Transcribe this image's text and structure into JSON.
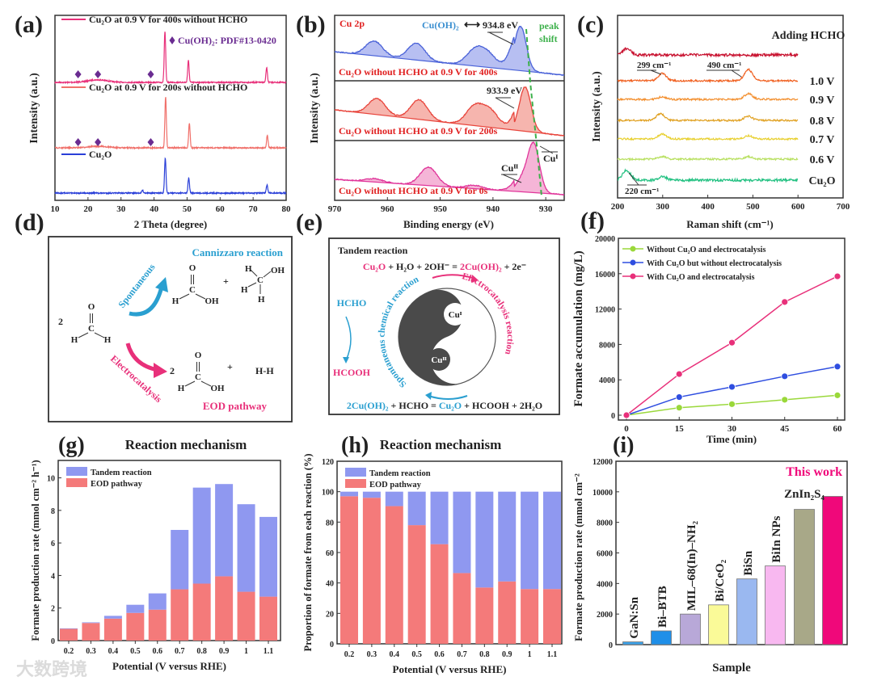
{
  "chart_data": [
    {
      "id": "a",
      "type": "line",
      "label": "(a)",
      "xlabel": "2 Theta (degree)",
      "ylabel": "Intensity (a.u.)",
      "xlim": [
        10,
        80
      ],
      "xticks": [
        10,
        20,
        30,
        40,
        50,
        60,
        70,
        80
      ],
      "series": [
        {
          "name": "Cu₂O at 0.9 V for 400s without HCHO",
          "color": "#e8307a",
          "peaks": [
            {
              "x": 43.3,
              "intensity": 100
            },
            {
              "x": 50.4,
              "intensity": 43
            },
            {
              "x": 74.1,
              "intensity": 29
            },
            {
              "x": 23,
              "intensity": 5,
              "width": 3
            }
          ]
        },
        {
          "name": "Cu₂O at 0.9 V for 200s without HCHO",
          "color": "#f0706a",
          "peaks": [
            {
              "x": 43.5,
              "intensity": 100
            },
            {
              "x": 50.7,
              "intensity": 49
            },
            {
              "x": 74.3,
              "intensity": 25
            },
            {
              "x": 23,
              "intensity": 3,
              "width": 3
            }
          ]
        },
        {
          "name": "Cu₂O",
          "color": "#2a3fd8",
          "peaks": [
            {
              "x": 43.4,
              "intensity": 68
            },
            {
              "x": 50.5,
              "intensity": 30
            },
            {
              "x": 74.2,
              "intensity": 16
            },
            {
              "x": 36.5,
              "intensity": 6
            }
          ]
        }
      ],
      "annotation": {
        "text": "Cu(OH)₂: PDF#13-0420",
        "color": "#6a2c91",
        "marker_positions": [
          17,
          23,
          39
        ]
      }
    },
    {
      "id": "b",
      "type": "line",
      "label": "(b)",
      "xlabel": "Binding energy (eV)",
      "ylabel": "Intensity (a.u.)",
      "xlim": [
        970,
        926.5
      ],
      "xticks": [
        970,
        960,
        950,
        940,
        930
      ],
      "title": "Cu 2p",
      "series": [
        {
          "name": "Cu₂O without HCHO at 0.9 V for 400s",
          "color": "#4a62d8",
          "fill": "#aab4f0",
          "peaks": [
            {
              "x": 962.5,
              "intensity": 33
            },
            {
              "x": 954.5,
              "intensity": 38
            },
            {
              "x": 943.5,
              "intensity": 33
            },
            {
              "x": 941,
              "intensity": 29
            },
            {
              "x": 934.8,
              "intensity": 100
            }
          ]
        },
        {
          "name": "Cu₂O without HCHO at 0.9 V for 200s",
          "color": "#e8453c",
          "fill": "#f5a8a0",
          "peaks": [
            {
              "x": 962,
              "intensity": 36
            },
            {
              "x": 954,
              "intensity": 44
            },
            {
              "x": 943.5,
              "intensity": 42
            },
            {
              "x": 940.5,
              "intensity": 36
            },
            {
              "x": 933.9,
              "intensity": 100
            }
          ]
        },
        {
          "name": "Cu₂O without HCHO  at 0.9 V for 0s",
          "color": "#e0359a",
          "fill": "#f3a8d0",
          "peaks": [
            {
              "x": 962.5,
              "intensity": 7
            },
            {
              "x": 952.2,
              "intensity": 38
            },
            {
              "x": 943.5,
              "intensity": 7
            },
            {
              "x": 934.5,
              "intensity": 25
            },
            {
              "x": 932.3,
              "intensity": 100
            }
          ]
        }
      ],
      "annotations": {
        "cuoh2": "Cu(OH)₂",
        "arrow": "⟷",
        "peak_934": "934.8 eV",
        "peak_933": "933.9 eV",
        "peak_shift_1": "peak",
        "peak_shift_2": "shift",
        "cu2": "Cuᴵᴵ",
        "cu1": "Cuᴵ"
      },
      "colors": {
        "label_red": "#e02020",
        "cuoh2_blue": "#3a8fd0",
        "shift_green": "#3cb04a"
      }
    },
    {
      "id": "c",
      "type": "line",
      "label": "(c)",
      "xlabel": "Raman shift (cm⁻¹)",
      "ylabel": "Intensity (a.u.)",
      "xlim": [
        200,
        700
      ],
      "xticks": [
        200,
        300,
        400,
        500,
        600,
        700
      ],
      "series": [
        {
          "name": "Adding HCHO",
          "color": "#c8102e",
          "peaks": [
            {
              "x": 220,
              "intensity": 8
            }
          ]
        },
        {
          "name": "1.0 V",
          "color": "#f06020",
          "peaks": [
            {
              "x": 299,
              "intensity": 9
            },
            {
              "x": 490,
              "intensity": 14
            }
          ]
        },
        {
          "name": "0.9 V",
          "color": "#f39030",
          "peaks": [
            {
              "x": 299,
              "intensity": 3
            },
            {
              "x": 490,
              "intensity": 7
            }
          ]
        },
        {
          "name": "0.8 V",
          "color": "#e0a020",
          "peaks": [
            {
              "x": 295,
              "intensity": 8
            },
            {
              "x": 490,
              "intensity": 5
            }
          ]
        },
        {
          "name": "0.7 V",
          "color": "#e8d030",
          "peaks": [
            {
              "x": 299,
              "intensity": 6
            },
            {
              "x": 490,
              "intensity": 4
            }
          ]
        },
        {
          "name": "0.6 V",
          "color": "#b8e060",
          "peaks": [
            {
              "x": 299,
              "intensity": 3
            },
            {
              "x": 490,
              "intensity": 3
            }
          ]
        },
        {
          "name": "Cu₂O",
          "color": "#20c080",
          "peaks": [
            {
              "x": 220,
              "intensity": 12
            },
            {
              "x": 300,
              "intensity": 4
            }
          ]
        }
      ],
      "annotations": {
        "p299": "299 cm⁻¹",
        "p490": "490 cm⁻¹",
        "p220": "220 cm⁻¹"
      }
    },
    {
      "id": "f",
      "type": "line",
      "label": "(f)",
      "xlabel": "Time (min)",
      "ylabel": "Formate accumulation (mg/L)",
      "x": [
        0,
        15,
        30,
        45,
        60
      ],
      "xlim": [
        0,
        60
      ],
      "ylim": [
        0,
        20000
      ],
      "xticks": [
        0,
        15,
        30,
        45,
        60
      ],
      "yticks": [
        0,
        4000,
        8000,
        12000,
        16000,
        20000
      ],
      "legend_position": "top-left",
      "series": [
        {
          "name": "Without Cu₂O and electrocatalysis",
          "color": "#9ad83a",
          "values": [
            0,
            850,
            1250,
            1750,
            2250
          ]
        },
        {
          "name": "With Cu₂O but without electrocatalysis",
          "color": "#2f4ee0",
          "values": [
            0,
            2050,
            3200,
            4400,
            5500
          ]
        },
        {
          "name": "With Cu₂O and electrocatalysis",
          "color": "#e8307a",
          "values": [
            0,
            4650,
            8200,
            12800,
            15700
          ]
        }
      ]
    },
    {
      "id": "g",
      "type": "bar",
      "stacked": true,
      "label": "(g)",
      "title": "Reaction mechanism",
      "xlabel": "Potential (V versus RHE)",
      "ylabel": "Formate production rate (mmol cm⁻² h⁻¹)",
      "categories": [
        "0.2",
        "0.3",
        "0.4",
        "0.5",
        "0.6",
        "0.7",
        "0.8",
        "0.9",
        "1",
        "1.1"
      ],
      "ylim": [
        0,
        11.07
      ],
      "yticks": [
        0,
        2,
        4,
        6,
        8,
        10
      ],
      "legend_position": "top-left",
      "series": [
        {
          "name": "EOD pathway",
          "color": "#f47a7a",
          "values": [
            0.72,
            1.08,
            1.35,
            1.7,
            1.9,
            3.15,
            3.5,
            3.95,
            3.0,
            2.7
          ]
        },
        {
          "name": "Tandem reaction",
          "color": "#8f98f0",
          "values": [
            0.03,
            0.04,
            0.17,
            0.5,
            1.0,
            3.65,
            5.9,
            5.67,
            5.38,
            4.9
          ]
        }
      ]
    },
    {
      "id": "h",
      "type": "bar",
      "stacked": true,
      "label": "(h)",
      "title": "Reaction mechanism",
      "xlabel": "Potential (V versus RHE)",
      "ylabel": "Proportion of formate from each reaction (%)",
      "categories": [
        "0.2",
        "0.3",
        "0.4",
        "0.5",
        "0.6",
        "0.7",
        "0.8",
        "0.9",
        "1",
        "1.1"
      ],
      "ylim": [
        0,
        120
      ],
      "yticks": [
        0,
        20,
        40,
        60,
        80,
        100,
        120
      ],
      "legend_position": "top-left",
      "series": [
        {
          "name": "EOD pathway",
          "color": "#f47a7a",
          "values": [
            97,
            96,
            90.5,
            78,
            65.5,
            46.5,
            37,
            41,
            36,
            36
          ]
        },
        {
          "name": "Tandem reaction",
          "color": "#8f98f0",
          "values": [
            3,
            4,
            9.5,
            22,
            34.5,
            53.5,
            63,
            59,
            64,
            64
          ]
        }
      ]
    },
    {
      "id": "i",
      "type": "bar",
      "label": "(i)",
      "xlabel": "Sample",
      "ylabel": "Formate production rate (mmol cm⁻²",
      "categories": [
        "GaN:Sn",
        "Bi–BTB",
        "MIL–68(In)–NH₂",
        "Bi/CeO₂",
        "BiSn",
        "BiIn NPs",
        "ZnIn₂S₄",
        "This work"
      ],
      "values": [
        180,
        900,
        2000,
        2600,
        4300,
        5150,
        8850,
        9700
      ],
      "colors": [
        "#3aa0e8",
        "#1f8fe8",
        "#b8a8d8",
        "#fafa98",
        "#9ab8f0",
        "#f8b8f0",
        "#a8a888",
        "#f0087a"
      ],
      "ylim": [
        0,
        12000
      ],
      "yticks": [
        0,
        2000,
        4000,
        6000,
        8000,
        10000,
        12000
      ]
    }
  ],
  "diagrams": {
    "d": {
      "label": "(d)",
      "cannizzaro": "Cannizzaro reaction",
      "eod": "EOD pathway",
      "spontaneous": "Spontaneous",
      "electrocatalysis": "Electrocatalysis",
      "coef": "2",
      "plus": "+",
      "hh": "H-H",
      "atoms": {
        "O": "O",
        "C": "C",
        "H": "H",
        "OH": "OH"
      },
      "colors": {
        "blue": "#2a9fd0",
        "pink": "#e8307a"
      }
    },
    "e": {
      "label": "(e)",
      "title": "Tandem reaction",
      "eq_top": [
        {
          "t": "Cu₂O",
          "c": "#e8307a"
        },
        {
          "t": " + H₂O + 2OH⁻ = ",
          "c": "#222222"
        },
        {
          "t": "2Cu(OH)₂",
          "c": "#e8307a"
        },
        {
          "t": " + 2e⁻",
          "c": "#222222"
        }
      ],
      "eq_bottom": [
        {
          "t": "2Cu(OH)₂",
          "c": "#2a9fd0"
        },
        {
          "t": " + HCHO = ",
          "c": "#222222"
        },
        {
          "t": "Cu₂O",
          "c": "#2a9fd0"
        },
        {
          "t": " + HCOOH + 2H₂O",
          "c": "#222222"
        }
      ],
      "hcho": "HCHO",
      "hcooh": "HCOOH",
      "cu1": "Cuᴵ",
      "cu2": "Cuᴵᴵ",
      "left_arc": "Spontaneous chemical reaction",
      "right_arc": "Electrocatalysis reaction",
      "colors": {
        "blue": "#2a9fd0",
        "pink": "#e8307a",
        "dark": "#4a4a4a"
      }
    }
  },
  "watermark": "大数跨境"
}
